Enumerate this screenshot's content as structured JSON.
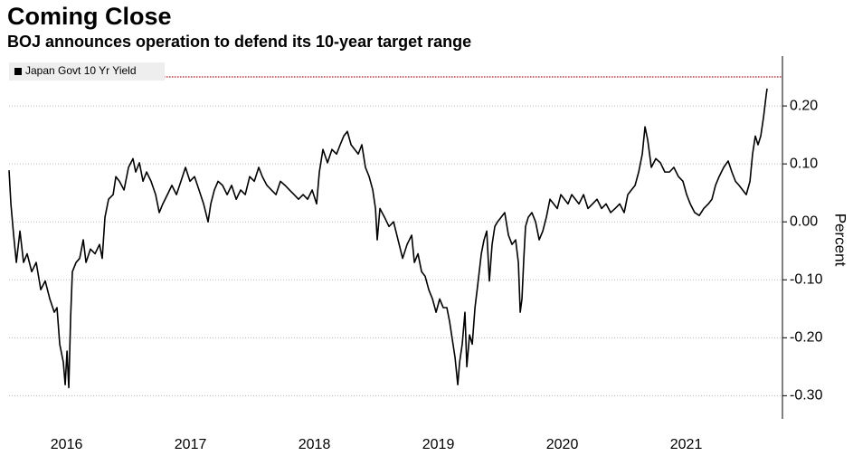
{
  "chart_data": {
    "type": "line",
    "title": "Coming Close",
    "subtitle": "BOJ announces operation to defend its 10-year target range",
    "ylabel": "Percent",
    "grid": true,
    "legend": "top-left",
    "reference_line": 0.25,
    "reference_color": "#e0303a",
    "xlim": [
      2016.036,
      2022.277
    ],
    "ylim": [
      -0.34,
      0.286
    ],
    "xticks": [
      {
        "value": 2016.5,
        "label": "2016"
      },
      {
        "value": 2017.5,
        "label": "2017"
      },
      {
        "value": 2018.5,
        "label": "2018"
      },
      {
        "value": 2019.5,
        "label": "2019"
      },
      {
        "value": 2020.5,
        "label": "2020"
      },
      {
        "value": 2021.5,
        "label": "2021"
      }
    ],
    "yticks": [
      {
        "value": 0.2,
        "label": "0.20"
      },
      {
        "value": 0.1,
        "label": "0.10"
      },
      {
        "value": 0,
        "label": "0.00"
      },
      {
        "value": -0.1,
        "label": "-0.10"
      },
      {
        "value": -0.2,
        "label": "-0.20"
      },
      {
        "value": -0.3,
        "label": "-0.30"
      }
    ],
    "x": [
      2016.036,
      2016.051,
      2016.073,
      2016.095,
      2016.124,
      2016.153,
      2016.182,
      2016.219,
      2016.255,
      2016.292,
      2016.328,
      2016.365,
      2016.401,
      2016.423,
      2016.445,
      2016.474,
      2016.489,
      2016.504,
      2016.518,
      2016.533,
      2016.547,
      2016.577,
      2016.606,
      2016.635,
      2016.657,
      2016.693,
      2016.73,
      2016.766,
      2016.788,
      2016.81,
      2016.839,
      2016.876,
      2016.898,
      2016.927,
      2016.964,
      2017.0,
      2017.036,
      2017.058,
      2017.088,
      2017.117,
      2017.146,
      2017.182,
      2017.219,
      2017.248,
      2017.277,
      2017.314,
      2017.35,
      2017.387,
      2017.423,
      2017.46,
      2017.496,
      2017.533,
      2017.569,
      2017.606,
      2017.642,
      2017.664,
      2017.693,
      2017.723,
      2017.759,
      2017.796,
      2017.832,
      2017.869,
      2017.905,
      2017.942,
      2017.978,
      2018.015,
      2018.051,
      2018.08,
      2018.117,
      2018.153,
      2018.19,
      2018.226,
      2018.263,
      2018.299,
      2018.336,
      2018.372,
      2018.409,
      2018.445,
      2018.482,
      2018.518,
      2018.54,
      2018.569,
      2018.606,
      2018.642,
      2018.679,
      2018.708,
      2018.737,
      2018.766,
      2018.796,
      2018.825,
      2018.854,
      2018.883,
      2018.912,
      2018.942,
      2018.971,
      2018.993,
      2019.007,
      2019.029,
      2019.066,
      2019.102,
      2019.139,
      2019.175,
      2019.212,
      2019.248,
      2019.285,
      2019.307,
      2019.336,
      2019.365,
      2019.394,
      2019.423,
      2019.453,
      2019.482,
      2019.511,
      2019.54,
      2019.569,
      2019.591,
      2019.613,
      2019.635,
      2019.657,
      2019.672,
      2019.693,
      2019.715,
      2019.73,
      2019.752,
      2019.774,
      2019.796,
      2019.818,
      2019.847,
      2019.869,
      2019.891,
      2019.912,
      2019.934,
      2019.956,
      2019.978,
      2020.007,
      2020.036,
      2020.066,
      2020.095,
      2020.124,
      2020.146,
      2020.161,
      2020.175,
      2020.19,
      2020.204,
      2020.226,
      2020.255,
      2020.285,
      2020.314,
      2020.343,
      2020.372,
      2020.401,
      2020.431,
      2020.46,
      2020.489,
      2020.518,
      2020.547,
      2020.577,
      2020.606,
      2020.635,
      2020.672,
      2020.708,
      2020.745,
      2020.781,
      2020.818,
      2020.854,
      2020.891,
      2020.927,
      2020.964,
      2021.0,
      2021.029,
      2021.058,
      2021.088,
      2021.117,
      2021.146,
      2021.168,
      2021.19,
      2021.219,
      2021.255,
      2021.292,
      2021.328,
      2021.365,
      2021.401,
      2021.438,
      2021.474,
      2021.504,
      2021.533,
      2021.569,
      2021.606,
      2021.642,
      2021.679,
      2021.708,
      2021.737,
      2021.766,
      2021.803,
      2021.839,
      2021.869,
      2021.898,
      2021.927,
      2021.956,
      2021.985,
      2022.015,
      2022.036,
      2022.058,
      2022.08,
      2022.102,
      2022.124,
      2022.146,
      2022.153
    ],
    "series": [
      {
        "name": "Japan Govt 10 Yr Yield",
        "color": "#000000",
        "values": [
          0.089,
          0.031,
          -0.023,
          -0.07,
          -0.016,
          -0.07,
          -0.055,
          -0.086,
          -0.07,
          -0.117,
          -0.102,
          -0.133,
          -0.156,
          -0.148,
          -0.211,
          -0.242,
          -0.281,
          -0.223,
          -0.286,
          -0.164,
          -0.086,
          -0.07,
          -0.063,
          -0.031,
          -0.07,
          -0.047,
          -0.055,
          -0.039,
          -0.063,
          0.008,
          0.039,
          0.047,
          0.078,
          0.07,
          0.055,
          0.094,
          0.109,
          0.086,
          0.102,
          0.07,
          0.086,
          0.07,
          0.047,
          0.016,
          0.031,
          0.047,
          0.063,
          0.047,
          0.07,
          0.094,
          0.07,
          0.078,
          0.055,
          0.031,
          0,
          0.031,
          0.055,
          0.07,
          0.063,
          0.047,
          0.063,
          0.039,
          0.055,
          0.047,
          0.078,
          0.07,
          0.094,
          0.078,
          0.063,
          0.055,
          0.047,
          0.07,
          0.063,
          0.055,
          0.047,
          0.039,
          0.047,
          0.039,
          0.055,
          0.031,
          0.086,
          0.125,
          0.102,
          0.125,
          0.117,
          0.133,
          0.148,
          0.156,
          0.133,
          0.125,
          0.117,
          0.133,
          0.094,
          0.078,
          0.055,
          0.023,
          -0.031,
          0.023,
          0.008,
          -0.008,
          0,
          -0.031,
          -0.063,
          -0.039,
          -0.023,
          -0.07,
          -0.055,
          -0.086,
          -0.094,
          -0.117,
          -0.133,
          -0.156,
          -0.133,
          -0.148,
          -0.148,
          -0.172,
          -0.203,
          -0.234,
          -0.281,
          -0.242,
          -0.211,
          -0.156,
          -0.25,
          -0.195,
          -0.211,
          -0.148,
          -0.109,
          -0.055,
          -0.031,
          -0.016,
          -0.102,
          -0.039,
          -0.008,
          0,
          0.008,
          0.016,
          -0.023,
          -0.039,
          -0.031,
          -0.07,
          -0.156,
          -0.133,
          -0.063,
          -0.008,
          0.008,
          0.016,
          0,
          -0.031,
          -0.016,
          0.008,
          0.039,
          0.031,
          0.023,
          0.047,
          0.039,
          0.031,
          0.047,
          0.039,
          0.031,
          0.047,
          0.023,
          0.031,
          0.039,
          0.023,
          0.031,
          0.016,
          0.023,
          0.031,
          0.016,
          0.047,
          0.055,
          0.063,
          0.086,
          0.117,
          0.164,
          0.141,
          0.094,
          0.109,
          0.102,
          0.086,
          0.086,
          0.094,
          0.078,
          0.07,
          0.047,
          0.031,
          0.016,
          0.011,
          0.023,
          0.031,
          0.039,
          0.063,
          0.078,
          0.094,
          0.105,
          0.086,
          0.07,
          0.063,
          0.055,
          0.047,
          0.07,
          0.117,
          0.148,
          0.133,
          0.148,
          0.18,
          0.219,
          0.23
        ]
      }
    ]
  }
}
